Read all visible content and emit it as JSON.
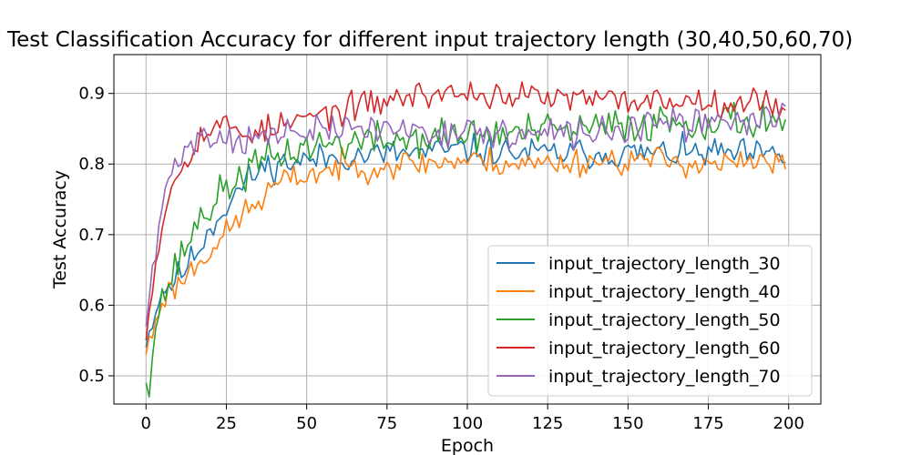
{
  "chart_data": {
    "type": "line",
    "title": "Test Classification Accuracy for different input trajectory length (30,40,50,60,70)",
    "xlabel": "Epoch",
    "ylabel": "Test Accuracy",
    "xlim": [
      -10,
      210
    ],
    "ylim": [
      0.46,
      0.955
    ],
    "xticks": [
      0,
      25,
      50,
      75,
      100,
      125,
      150,
      175,
      200
    ],
    "yticks": [
      0.5,
      0.6,
      0.7,
      0.8,
      0.9
    ],
    "grid": true,
    "legend_position": "lower-right",
    "epochs": 200,
    "series": [
      {
        "name": "input_trajectory_length_30",
        "color": "#1f77b4",
        "anchors": [
          [
            0,
            0.54
          ],
          [
            2,
            0.58
          ],
          [
            5,
            0.62
          ],
          [
            10,
            0.64
          ],
          [
            15,
            0.67
          ],
          [
            20,
            0.71
          ],
          [
            25,
            0.74
          ],
          [
            30,
            0.77
          ],
          [
            35,
            0.79
          ],
          [
            40,
            0.8
          ],
          [
            50,
            0.805
          ],
          [
            60,
            0.81
          ],
          [
            80,
            0.815
          ],
          [
            100,
            0.82
          ],
          [
            120,
            0.815
          ],
          [
            140,
            0.815
          ],
          [
            160,
            0.815
          ],
          [
            180,
            0.815
          ],
          [
            199,
            0.81
          ]
        ],
        "noise": 0.018,
        "seed": 11
      },
      {
        "name": "input_trajectory_length_40",
        "color": "#ff7f0e",
        "anchors": [
          [
            0,
            0.53
          ],
          [
            2,
            0.56
          ],
          [
            5,
            0.61
          ],
          [
            10,
            0.63
          ],
          [
            15,
            0.655
          ],
          [
            20,
            0.68
          ],
          [
            25,
            0.7
          ],
          [
            30,
            0.73
          ],
          [
            35,
            0.745
          ],
          [
            40,
            0.77
          ],
          [
            50,
            0.785
          ],
          [
            60,
            0.795
          ],
          [
            80,
            0.8
          ],
          [
            100,
            0.805
          ],
          [
            120,
            0.8
          ],
          [
            140,
            0.805
          ],
          [
            160,
            0.805
          ],
          [
            180,
            0.8
          ],
          [
            199,
            0.8
          ]
        ],
        "noise": 0.017,
        "seed": 23
      },
      {
        "name": "input_trajectory_length_50",
        "color": "#2ca02c",
        "anchors": [
          [
            0,
            0.49
          ],
          [
            1,
            0.5
          ],
          [
            3,
            0.57
          ],
          [
            5,
            0.61
          ],
          [
            10,
            0.66
          ],
          [
            15,
            0.71
          ],
          [
            20,
            0.74
          ],
          [
            25,
            0.765
          ],
          [
            30,
            0.785
          ],
          [
            35,
            0.8
          ],
          [
            40,
            0.81
          ],
          [
            50,
            0.825
          ],
          [
            60,
            0.83
          ],
          [
            80,
            0.835
          ],
          [
            100,
            0.84
          ],
          [
            120,
            0.845
          ],
          [
            140,
            0.85
          ],
          [
            160,
            0.86
          ],
          [
            180,
            0.86
          ],
          [
            199,
            0.865
          ]
        ],
        "noise": 0.022,
        "seed": 37
      },
      {
        "name": "input_trajectory_length_60",
        "color": "#d62728",
        "anchors": [
          [
            0,
            0.55
          ],
          [
            2,
            0.63
          ],
          [
            4,
            0.69
          ],
          [
            6,
            0.74
          ],
          [
            10,
            0.79
          ],
          [
            15,
            0.83
          ],
          [
            20,
            0.85
          ],
          [
            25,
            0.855
          ],
          [
            30,
            0.845
          ],
          [
            40,
            0.85
          ],
          [
            50,
            0.865
          ],
          [
            60,
            0.875
          ],
          [
            70,
            0.885
          ],
          [
            80,
            0.895
          ],
          [
            90,
            0.9
          ],
          [
            100,
            0.9
          ],
          [
            120,
            0.895
          ],
          [
            140,
            0.89
          ],
          [
            160,
            0.89
          ],
          [
            180,
            0.89
          ],
          [
            199,
            0.885
          ]
        ],
        "noise": 0.017,
        "seed": 53
      },
      {
        "name": "input_trajectory_length_70",
        "color": "#9467bd",
        "anchors": [
          [
            0,
            0.57
          ],
          [
            2,
            0.64
          ],
          [
            4,
            0.71
          ],
          [
            6,
            0.76
          ],
          [
            10,
            0.81
          ],
          [
            15,
            0.835
          ],
          [
            20,
            0.84
          ],
          [
            30,
            0.835
          ],
          [
            40,
            0.84
          ],
          [
            50,
            0.845
          ],
          [
            60,
            0.85
          ],
          [
            80,
            0.85
          ],
          [
            100,
            0.845
          ],
          [
            120,
            0.84
          ],
          [
            140,
            0.845
          ],
          [
            160,
            0.855
          ],
          [
            180,
            0.86
          ],
          [
            199,
            0.87
          ]
        ],
        "noise": 0.018,
        "seed": 71
      }
    ]
  }
}
